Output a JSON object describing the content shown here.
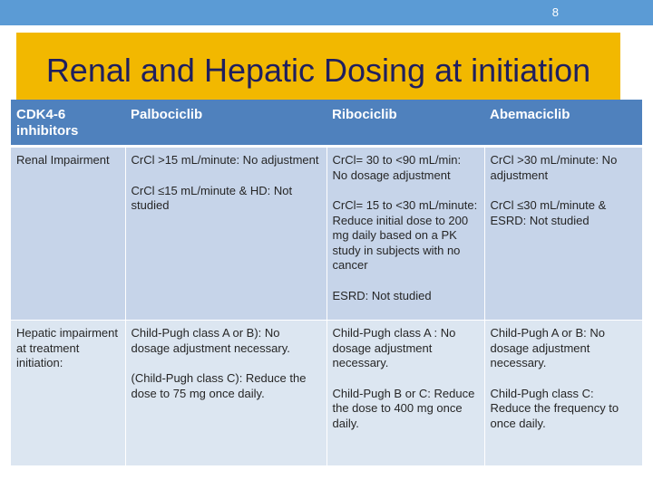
{
  "page_number": "8",
  "title": "Renal and Hepatic Dosing at initiation",
  "table": {
    "headers": [
      "CDK4-6 inhibitors",
      "Palbociclib",
      "Ribociclib",
      "Abemaciclib"
    ],
    "rows": [
      {
        "label": "Renal Impairment",
        "cells": [
          [
            "CrCl >15 mL/minute: No adjustment",
            "CrCl ≤15 mL/minute & HD: Not studied"
          ],
          [
            "CrCl= 30 to <90 mL/min: No dosage adjustment",
            "CrCl= 15 to <30 mL/minute: Reduce initial dose to 200 mg daily based on a PK study in subjects with no cancer",
            "ESRD: Not studied"
          ],
          [
            "CrCl >30 mL/minute: No adjustment",
            "CrCl ≤30 mL/minute & ESRD: Not studied"
          ]
        ]
      },
      {
        "label": "Hepatic impairment at treatment initiation:",
        "cells": [
          [
            "Child-Pugh class A or B): No dosage adjustment necessary.",
            "(Child-Pugh class C): Reduce the dose to 75 mg once daily."
          ],
          [
            "Child-Pugh class A : No dosage adjustment necessary.",
            "Child-Pugh B or C: Reduce the dose to 400 mg once daily."
          ],
          [
            "Child-Pugh  A or B:  No dosage adjustment necessary.",
            "Child-Pugh class C: Reduce the frequency to once daily."
          ]
        ]
      }
    ]
  },
  "colors": {
    "top_bar": "#5b9bd5",
    "title_box": "#f2b800",
    "title_text": "#1f1f5f",
    "header_row": "#4f81bd",
    "row_light": "#dce6f1",
    "row_dark": "#c6d4e9"
  }
}
